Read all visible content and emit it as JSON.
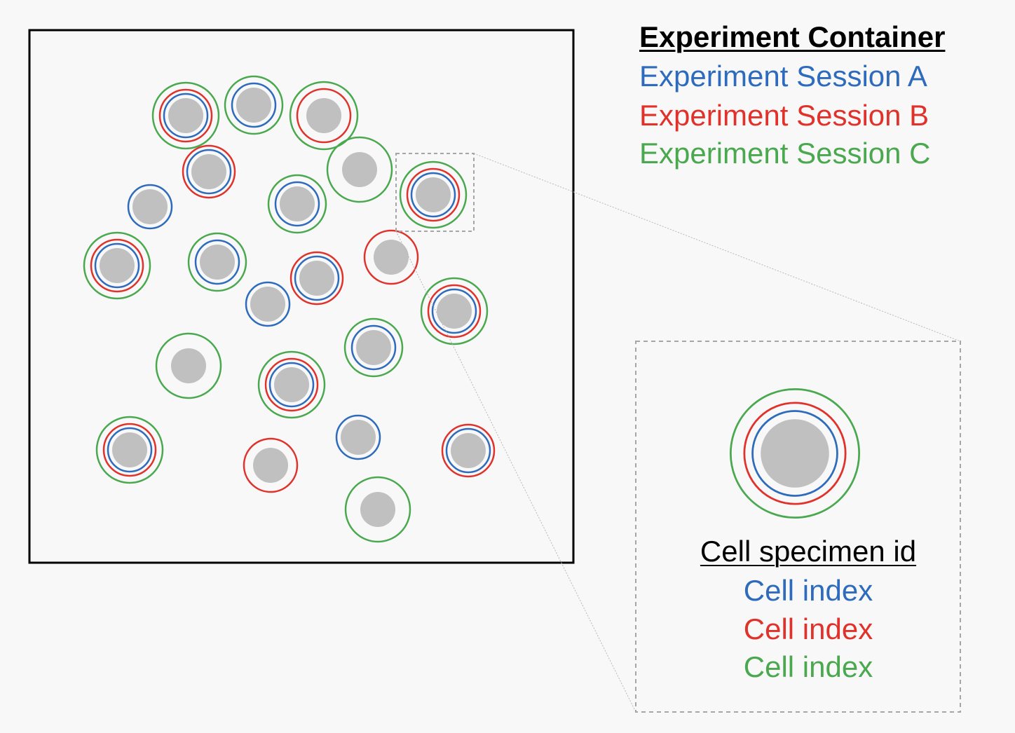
{
  "colors": {
    "session_a": "#2e6bbd",
    "session_b": "#e0322b",
    "session_c": "#4aa84f",
    "cell_fill": "#c0c0c0",
    "background": "#f8f8f8",
    "frame": "#000000",
    "dashed": "#a6a6a6"
  },
  "legend": {
    "title": "Experiment Container",
    "items": [
      {
        "label": "Experiment Session A",
        "color": "#2e6bbd"
      },
      {
        "label": "Experiment Session B",
        "color": "#e0322b"
      },
      {
        "label": "Experiment Session C",
        "color": "#4aa84f"
      }
    ]
  },
  "key": {
    "title": "Cell specimen id",
    "rows": [
      {
        "label": "Cell index",
        "color": "#2e6bbd"
      },
      {
        "label": "Cell index",
        "color": "#e0322b"
      },
      {
        "label": "Cell index",
        "color": "#4aa84f"
      }
    ]
  },
  "cells": [
    {
      "sessions": [
        "A",
        "B",
        "C"
      ]
    },
    {
      "sessions": [
        "A",
        "C"
      ]
    },
    {
      "sessions": [
        "B",
        "C"
      ]
    },
    {
      "sessions": [
        "A",
        "B"
      ]
    },
    {
      "sessions": [
        "C"
      ]
    },
    {
      "sessions": [
        "A",
        "B",
        "C"
      ],
      "highlighted": true
    },
    {
      "sessions": [
        "A"
      ]
    },
    {
      "sessions": [
        "A",
        "C"
      ]
    },
    {
      "sessions": [
        "A",
        "B",
        "C"
      ]
    },
    {
      "sessions": [
        "A",
        "C"
      ]
    },
    {
      "sessions": [
        "B"
      ]
    },
    {
      "sessions": [
        "A",
        "B"
      ]
    },
    {
      "sessions": [
        "A"
      ]
    },
    {
      "sessions": [
        "A",
        "B",
        "C"
      ]
    },
    {
      "sessions": [
        "A",
        "C"
      ]
    },
    {
      "sessions": [
        "C"
      ]
    },
    {
      "sessions": [
        "A",
        "B",
        "C"
      ]
    },
    {
      "sessions": [
        "A"
      ]
    },
    {
      "sessions": [
        "A",
        "B",
        "C"
      ]
    },
    {
      "sessions": [
        "B"
      ]
    },
    {
      "sessions": [
        "A",
        "B"
      ]
    },
    {
      "sessions": [
        "C"
      ]
    }
  ]
}
